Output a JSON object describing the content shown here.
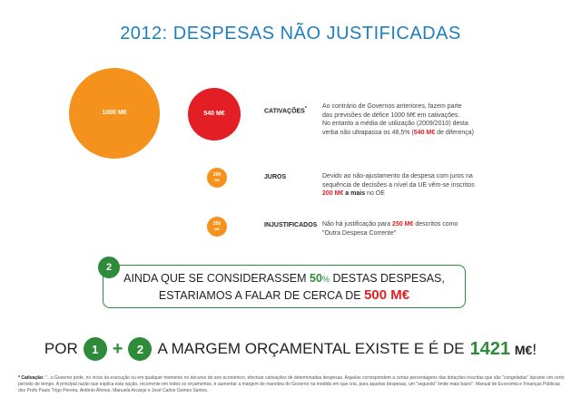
{
  "title": "2012: DESPESAS NÃO JUSTIFICADAS",
  "circles": {
    "big": {
      "value": "1000",
      "unit": "M€"
    },
    "cativacoes": {
      "value": "540",
      "unit": "M€"
    },
    "juros": {
      "value": "200",
      "unit": "M€"
    },
    "injustificados": {
      "value": "250",
      "unit": "M€"
    }
  },
  "items": {
    "cativacoes": {
      "label": "CATIVAÇÕES",
      "marker": "*",
      "text_1": "Ao contrário de Governos anteriores, fazem parte",
      "text_2": "das previsões de défice 1000 M€ em cativações.",
      "text_3": "No entanto a média de utilização (2009/2010) desta",
      "text_4": "verba não ultrapassa os 48,5% (",
      "highlight": "540 M€",
      "text_5": " de diferença)"
    },
    "juros": {
      "label": "JUROS",
      "text_1": "Devido ao não-ajustamento da despesa com juros na",
      "text_2": "sequência de decisões a nível da UE vêm-se inscritos",
      "highlight": "200 M€",
      "text_3": " a mais",
      "text_4": " no OE"
    },
    "injustificados": {
      "label": "INJUSTIFICADOS",
      "text_1": "Não há justificação para ",
      "highlight": "250 M€",
      "text_2": " descritos como",
      "text_3": "\"Outra Despesa Corrente\""
    }
  },
  "box": {
    "badge": "2",
    "line1_a": "AINDA QUE SE CONSIDERASSEM ",
    "line1_num": "50",
    "line1_pct": "%",
    "line1_b": " DESTAS DESPESAS,",
    "line2_a": "ESTARIAMOS A FALAR DE CERCA DE ",
    "line2_num": "500 M€"
  },
  "bottom": {
    "por": "POR",
    "badge1": "1",
    "plus": "+",
    "badge2": "2",
    "text": "A MARGEM ORÇAMENTAL EXISTE E É DE",
    "total": "1421",
    "unit": "M€",
    "excl": "!"
  },
  "footnote": {
    "label": "* Cativação:",
    "text": " \"...o Governo pode, no início da execução ou em qualquer momento no decurso do ano económico, efectuar cativações de determinadas despesas. Aquelas correspondem a certas percentagens das dotações inscritas que são \"congeladas\" durante um certo período de tempo. A principal razão que explica esta opção, recorrente em todos os orçamentos, é aumentar a margem de manobra do Governo na medida em que cria, para aquelas despesas, um \"segundo\" limite mais baixo\"; Manual de Economia e Finanças Públicas dos Profs Paulo Trigo Pereira, António Afonso, Manuela Arcanjo e José Carlos Gomes Santos."
  },
  "colors": {
    "title": "#1d7fbf",
    "orange": "#f5921e",
    "red": "#e31e24",
    "green": "#2e8b3a"
  }
}
